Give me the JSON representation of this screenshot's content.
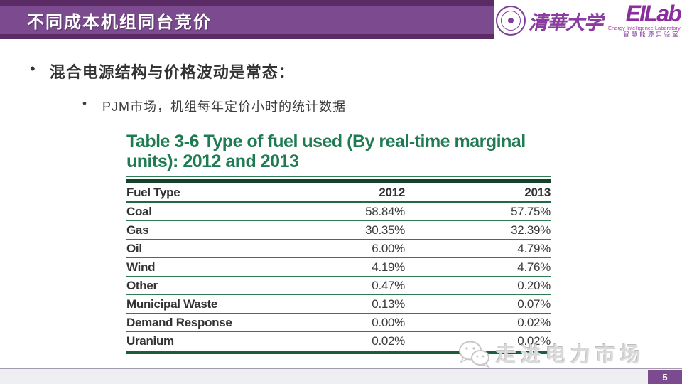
{
  "slide": {
    "header": {
      "title": "不同成本机组同台竞价"
    },
    "logos": {
      "tsinghua": "清華大学",
      "eilab": "EILab",
      "eilab_caption_en": "Energy Intelligence Laboratory",
      "eilab_caption_cn": "智慧能源实验室"
    },
    "bullets": {
      "marker": "•",
      "main": "混合电源结构与价格波动是常态：",
      "sub": "PJM市场，机组每年定价小时的统计数据"
    },
    "table": {
      "title_line1": "Table 3-6 Type of fuel used (By real-time marginal",
      "title_line2": "units): 2012 and 2013",
      "columns": [
        "Fuel Type",
        "2012",
        "2013"
      ],
      "rows": [
        [
          "Coal",
          "58.84%",
          "57.75%"
        ],
        [
          "Gas",
          "30.35%",
          "32.39%"
        ],
        [
          "Oil",
          "6.00%",
          "4.79%"
        ],
        [
          "Wind",
          "4.19%",
          "4.76%"
        ],
        [
          "Other",
          "0.47%",
          "0.20%"
        ],
        [
          "Municipal Waste",
          "0.13%",
          "0.07%"
        ],
        [
          "Demand Response",
          "0.00%",
          "0.02%"
        ],
        [
          "Uranium",
          "0.02%",
          "0.02%"
        ]
      ]
    },
    "footer": {
      "watermark": "走进电力市场",
      "page_number": "5"
    }
  },
  "colors": {
    "banner_purple": "#7b4a8f",
    "banner_dark": "#5a2b64",
    "logo_purple": "#8a2d9e",
    "table_title_green": "#1e7b52",
    "table_line_green": "#2e7d52",
    "table_bar_dark_green": "#15402b"
  },
  "chart_data": {
    "type": "table",
    "title": "Table 3-6 Type of fuel used (By real-time marginal units): 2012 and 2013",
    "columns": [
      "Fuel Type",
      "2012",
      "2013"
    ],
    "rows": [
      {
        "fuel_type": "Coal",
        "y2012": "58.84%",
        "y2013": "57.75%"
      },
      {
        "fuel_type": "Gas",
        "y2012": "30.35%",
        "y2013": "32.39%"
      },
      {
        "fuel_type": "Oil",
        "y2012": "6.00%",
        "y2013": "4.79%"
      },
      {
        "fuel_type": "Wind",
        "y2012": "4.19%",
        "y2013": "4.76%"
      },
      {
        "fuel_type": "Other",
        "y2012": "0.47%",
        "y2013": "0.20%"
      },
      {
        "fuel_type": "Municipal Waste",
        "y2012": "0.13%",
        "y2013": "0.07%"
      },
      {
        "fuel_type": "Demand Response",
        "y2012": "0.00%",
        "y2013": "0.02%"
      },
      {
        "fuel_type": "Uranium",
        "y2012": "0.02%",
        "y2013": "0.02%"
      }
    ]
  }
}
